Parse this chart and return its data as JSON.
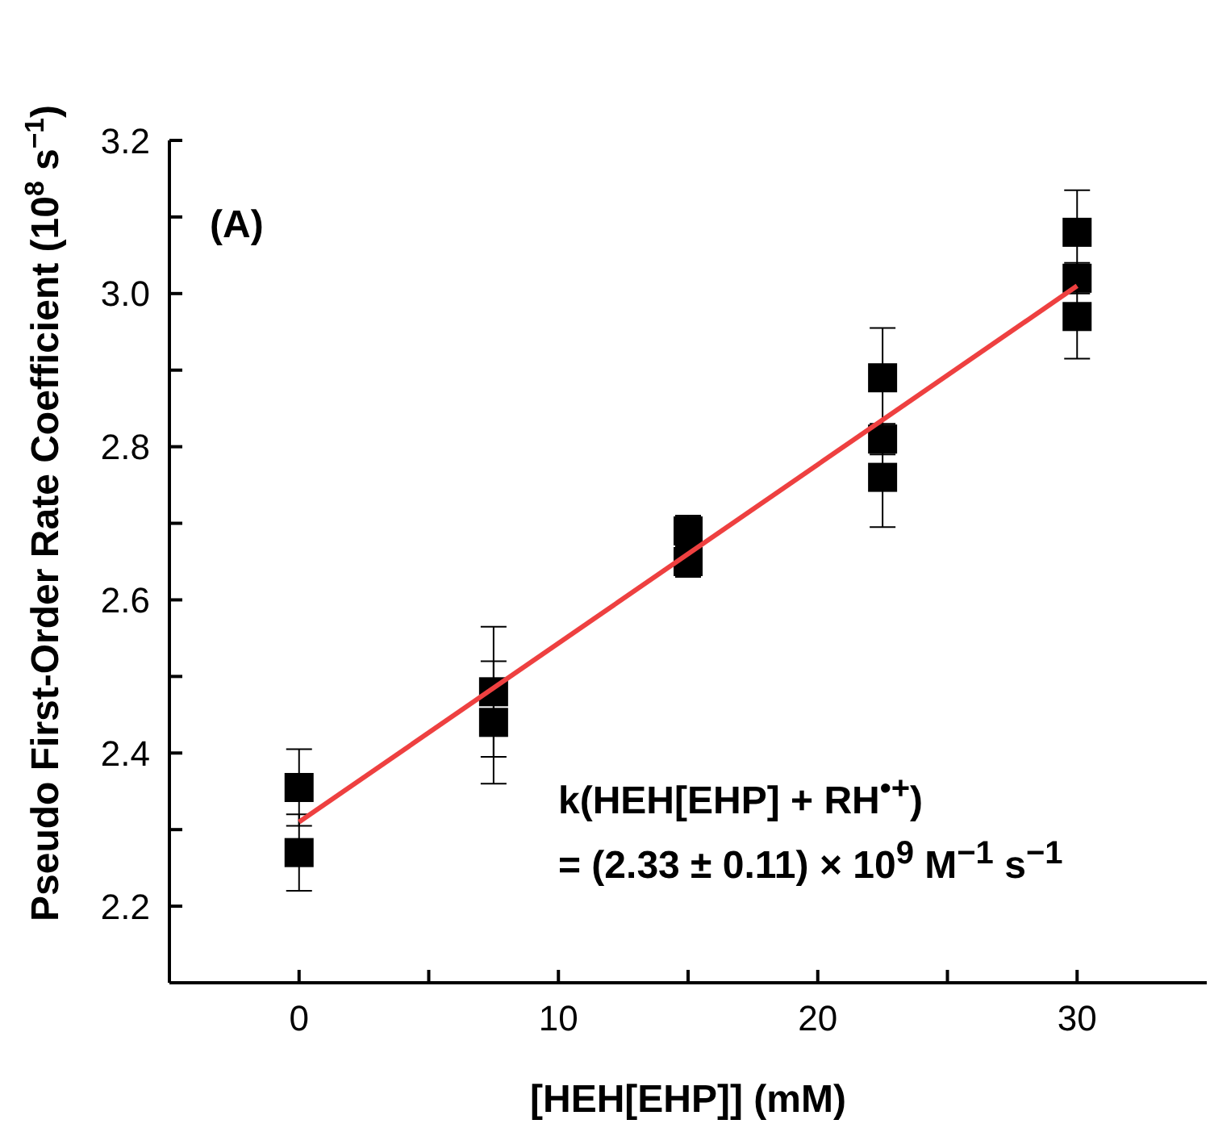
{
  "chart_data": {
    "type": "scatter",
    "xlabel": "[HEH[EHP]] (mM)",
    "ylabel": "Pseudo First-Order Rate Coefficient (10$^{8}$ s$^{−1}$)",
    "annotations": [
      "(A)",
      "k(HEH[EHP] + RH$^{•+}$)",
      "= (2.33 ± 0.11) × 10$^{9}$ M$^{−1}$ s$^{−1}$"
    ],
    "xlim": [
      -5,
      35
    ],
    "ylim": [
      2.1,
      3.2
    ],
    "xticks": [
      0,
      {
        "value": 5,
        "label": null
      },
      10,
      {
        "value": 15,
        "label": null
      },
      20,
      {
        "value": 25,
        "label": null
      },
      30
    ],
    "yticks": [
      {
        "value": 2.2,
        "label": "2.2"
      },
      {
        "value": 2.3,
        "label": null
      },
      {
        "value": 2.4,
        "label": "2.4"
      },
      {
        "value": 2.5,
        "label": null
      },
      {
        "value": 2.6,
        "label": "2.6"
      },
      {
        "value": 2.7,
        "label": null
      },
      {
        "value": 2.8,
        "label": "2.8"
      },
      {
        "value": 2.9,
        "label": null
      },
      {
        "value": 3.0,
        "label": "3.0"
      },
      {
        "value": 3.1,
        "label": null
      },
      {
        "value": 3.2,
        "label": "3.2"
      }
    ],
    "marker": "square",
    "series": [
      {
        "color": "#000000",
        "x": [
          0,
          0,
          7.5,
          7.5,
          15,
          15,
          22.5,
          22.5,
          22.5,
          30,
          30,
          30
        ],
        "values": [
          2.355,
          2.27,
          2.48,
          2.44,
          2.69,
          2.65,
          2.89,
          2.81,
          2.76,
          3.08,
          3.02,
          2.97
        ],
        "errors": [
          0.05,
          0.05,
          0.085,
          0.08,
          0.02,
          0.02,
          0.065,
          0.02,
          0.065,
          0.055,
          0.02,
          0.055
        ]
      },
      {
        "type": "line",
        "color": "#ee4040",
        "x": [
          0,
          30
        ],
        "values": [
          2.31,
          3.01
        ],
        "marker": "none",
        "line_style": "solid"
      }
    ]
  }
}
